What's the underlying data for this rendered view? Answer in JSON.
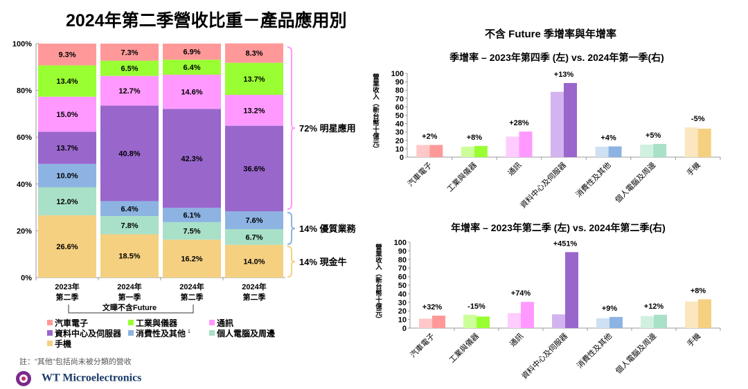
{
  "title": "2024年第二季營收比重－產品應用別",
  "right_title": "不含 Future 季增率與年增率",
  "note": "註：\"其他\"包括尚未被分類的營收",
  "logo_text": "WT Microelectronics",
  "colors": {
    "auto": "#ff9999",
    "industrial": "#99ff33",
    "comm": "#ff99ff",
    "dc": "#9966cc",
    "consumer": "#8db3e2",
    "pc": "#a8e0c8",
    "mobile": "#f5d080"
  },
  "light_colors": {
    "auto": "#ffc8c8",
    "industrial": "#ccff99",
    "comm": "#ffccff",
    "dc": "#d4b4f0",
    "consumer": "#cfe0f3",
    "pc": "#d0f0e0",
    "mobile": "#fae6bf"
  },
  "chart_data": [
    {
      "type": "bar",
      "stacked": true,
      "title": "2024年第二季營收比重－產品應用別",
      "categories": [
        [
          "2023年",
          "第二季"
        ],
        [
          "2024年",
          "第一季"
        ],
        [
          "2024年",
          "第二季"
        ],
        [
          "2024年",
          "第二季"
        ]
      ],
      "bracket_label": "文曄不含Future",
      "yticks": [
        "0%",
        "20%",
        "40%",
        "60%",
        "80%",
        "100%"
      ],
      "ylim": [
        0,
        100
      ],
      "series": [
        {
          "name": "手機",
          "key": "mobile",
          "values": [
            26.6,
            18.5,
            16.2,
            14.0
          ]
        },
        {
          "name": "個人電腦及周邊",
          "key": "pc",
          "values": [
            12.0,
            7.8,
            7.5,
            6.7
          ]
        },
        {
          "name": "消費性及其他",
          "sup": "1",
          "key": "consumer",
          "values": [
            10.0,
            6.4,
            6.1,
            7.6
          ]
        },
        {
          "name": "資料中心及伺服器",
          "key": "dc",
          "values": [
            13.7,
            40.8,
            42.3,
            36.6
          ]
        },
        {
          "name": "通訊",
          "key": "comm",
          "values": [
            15.0,
            12.7,
            14.6,
            13.2
          ]
        },
        {
          "name": "工業與儀器",
          "key": "industrial",
          "values": [
            13.4,
            6.5,
            6.4,
            13.7
          ]
        },
        {
          "name": "汽車電子",
          "key": "auto",
          "values": [
            9.3,
            7.3,
            6.9,
            8.3
          ]
        }
      ],
      "legend_order": [
        "auto",
        "industrial",
        "comm",
        "dc",
        "consumer",
        "pc",
        "mobile"
      ],
      "annotations": [
        "72% 明星應用",
        "14% 優質業務",
        "14% 現金牛"
      ]
    },
    {
      "type": "bar",
      "title": "季增率 – 2023年第四季 (左) vs. 2024年第一季(右)",
      "ylabel": "營業收入（新台幣十億元）",
      "ylim": [
        0,
        100
      ],
      "categories": [
        "汽車電子",
        "工業與儀器",
        "通訊",
        "資料中心及伺服器",
        "消費性及其他",
        "個人電腦及周邊",
        "手機"
      ],
      "left": [
        14.5,
        12.5,
        24.5,
        78,
        12.5,
        15,
        35.5
      ],
      "right": [
        14.5,
        13.3,
        30.5,
        88.5,
        12.8,
        15.8,
        34
      ],
      "labels": [
        "+2%",
        "+8%",
        "+28%",
        "+13%",
        "+4%",
        "+5%",
        "-5%"
      ]
    },
    {
      "type": "bar",
      "title": "年增率 – 2023年第二季 (左) vs. 2024年第二季(右)",
      "ylabel": "營業收入（新台幣十億元）",
      "ylim": [
        0,
        100
      ],
      "categories": [
        "汽車電子",
        "工業與儀器",
        "通訊",
        "資料中心及伺服器",
        "消費性及其他",
        "個人電腦及周邊",
        "手機"
      ],
      "left": [
        11,
        15.5,
        17.5,
        16,
        11.5,
        14,
        31
      ],
      "right": [
        14.5,
        13.5,
        30.5,
        88.5,
        13,
        15.5,
        33.5
      ],
      "labels": [
        "+32%",
        "-15%",
        "+74%",
        "+451%",
        "+9%",
        "+12%",
        "+8%"
      ]
    }
  ]
}
